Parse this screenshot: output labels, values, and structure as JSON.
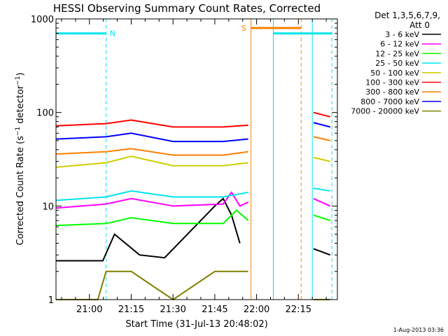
{
  "chart_data": {
    "type": "line",
    "title": "HESSI Observing Summary Count Rates, Corrected",
    "xlabel": "Start Time (31-Jul-13 20:48:02)",
    "ylabel": "Corrected Count Rate (s⁻¹ detector⁻¹)",
    "yscale": "log",
    "ylim": [
      1,
      1000
    ],
    "xlim": [
      "20:48",
      "22:29"
    ],
    "y_tick_labels": [
      "1",
      "10",
      "100",
      "1000"
    ],
    "x_tick_labels": [
      "21:00",
      "21:15",
      "21:30",
      "21:45",
      "22:00",
      "22:15"
    ],
    "footer_timestamp": "1-Aug-2013 03:36",
    "legend": {
      "placement": "right",
      "header_line1": "Det 1,3,5,6,7,9,",
      "header_line2": "Att 0"
    },
    "flags": [
      {
        "label": "N",
        "color": "#00e5ee",
        "start": "20:48",
        "end": "21:06",
        "level": 700
      },
      {
        "label": "S",
        "color": "#ff8000",
        "start": "21:58",
        "end": "22:16",
        "level": 800
      },
      {
        "label": "",
        "color": "#00e5ee",
        "start": "22:06",
        "end": "22:27",
        "level": 700
      }
    ],
    "markers": [
      {
        "time": "20:48",
        "color": "#00e5ee",
        "style": "solid"
      },
      {
        "time": "21:06",
        "color": "#00e5ee",
        "style": "dashed"
      },
      {
        "time": "21:58",
        "color": "#ff8000",
        "style": "solid"
      },
      {
        "time": "22:06",
        "color": "#00e5ee",
        "style": "solid"
      },
      {
        "time": "22:16",
        "color": "#ff8000",
        "style": "dashed"
      },
      {
        "time": "22:20",
        "color": "#00e5ee",
        "style": "solid"
      },
      {
        "time": "22:27",
        "color": "#00e5ee",
        "style": "dashed"
      }
    ],
    "series": [
      {
        "name": "3 - 6 keV",
        "color": "#000000",
        "segments": [
          {
            "t": [
              20.8,
              21.08,
              21.15,
              21.3,
              21.45,
              21.75,
              21.8,
              21.85,
              21.9
            ],
            "v": [
              2.6,
              2.6,
              5.0,
              3.0,
              2.8,
              10.0,
              12.0,
              8.0,
              4.0
            ]
          },
          {
            "t": [
              22.34,
              22.44
            ],
            "v": [
              3.5,
              3.0
            ]
          }
        ]
      },
      {
        "name": "6 - 12 keV",
        "color": "#ff00ff",
        "segments": [
          {
            "t": [
              20.8,
              21.1,
              21.25,
              21.5,
              21.8,
              21.85,
              21.9,
              21.95
            ],
            "v": [
              9.5,
              10.5,
              12.0,
              10.0,
              10.5,
              14.0,
              10.0,
              11.0
            ]
          },
          {
            "t": [
              22.34,
              22.44
            ],
            "v": [
              12.0,
              10.0
            ]
          }
        ]
      },
      {
        "name": "12 - 25 keV",
        "color": "#00ff00",
        "segments": [
          {
            "t": [
              20.8,
              21.1,
              21.25,
              21.5,
              21.8,
              21.88,
              21.95
            ],
            "v": [
              6.2,
              6.5,
              7.5,
              6.5,
              6.5,
              9.0,
              7.0
            ]
          },
          {
            "t": [
              22.34,
              22.44
            ],
            "v": [
              8.0,
              7.0
            ]
          }
        ]
      },
      {
        "name": "25 - 50 keV",
        "color": "#00e5ee",
        "segments": [
          {
            "t": [
              20.8,
              21.1,
              21.25,
              21.5,
              21.8,
              21.95
            ],
            "v": [
              11.5,
              12.5,
              14.5,
              12.5,
              12.5,
              14.0
            ]
          },
          {
            "t": [
              22.34,
              22.44
            ],
            "v": [
              15.5,
              14.5
            ]
          }
        ]
      },
      {
        "name": "50 - 100 keV",
        "color": "#cdcd00",
        "segments": [
          {
            "t": [
              20.8,
              21.1,
              21.25,
              21.5,
              21.8,
              21.95
            ],
            "v": [
              26.0,
              29.0,
              34.0,
              27.0,
              27.0,
              29.0
            ]
          },
          {
            "t": [
              22.34,
              22.44
            ],
            "v": [
              33.0,
              30.0
            ]
          }
        ]
      },
      {
        "name": "100 - 300 keV",
        "color": "#ff0000",
        "segments": [
          {
            "t": [
              20.8,
              21.1,
              21.25,
              21.5,
              21.8,
              21.95
            ],
            "v": [
              72.0,
              76.0,
              83.0,
              70.0,
              70.0,
              73.0
            ]
          },
          {
            "t": [
              22.34,
              22.44
            ],
            "v": [
              100.0,
              90.0
            ]
          }
        ]
      },
      {
        "name": "300 - 800 keV",
        "color": "#ff8000",
        "segments": [
          {
            "t": [
              20.8,
              21.1,
              21.25,
              21.5,
              21.8,
              21.95
            ],
            "v": [
              36.0,
              38.0,
              41.0,
              35.0,
              35.0,
              38.0
            ]
          },
          {
            "t": [
              22.34,
              22.44
            ],
            "v": [
              55.0,
              50.0
            ]
          }
        ]
      },
      {
        "name": "800 - 7000 keV",
        "color": "#0000ff",
        "segments": [
          {
            "t": [
              20.8,
              21.1,
              21.25,
              21.5,
              21.8,
              21.95
            ],
            "v": [
              52.0,
              55.0,
              60.0,
              49.0,
              49.0,
              52.0
            ]
          },
          {
            "t": [
              22.34,
              22.44
            ],
            "v": [
              78.0,
              70.0
            ]
          }
        ]
      },
      {
        "name": "7000 - 20000 keV",
        "color": "#808000",
        "segments": [
          {
            "t": [
              20.8,
              21.05,
              21.1,
              21.25,
              21.5,
              21.75,
              21.95
            ],
            "v": [
              1.0,
              1.0,
              2.0,
              2.0,
              1.0,
              2.0,
              2.0
            ]
          },
          {
            "t": [
              22.34,
              22.44
            ],
            "v": [
              1.0,
              1.0
            ]
          }
        ]
      }
    ]
  }
}
